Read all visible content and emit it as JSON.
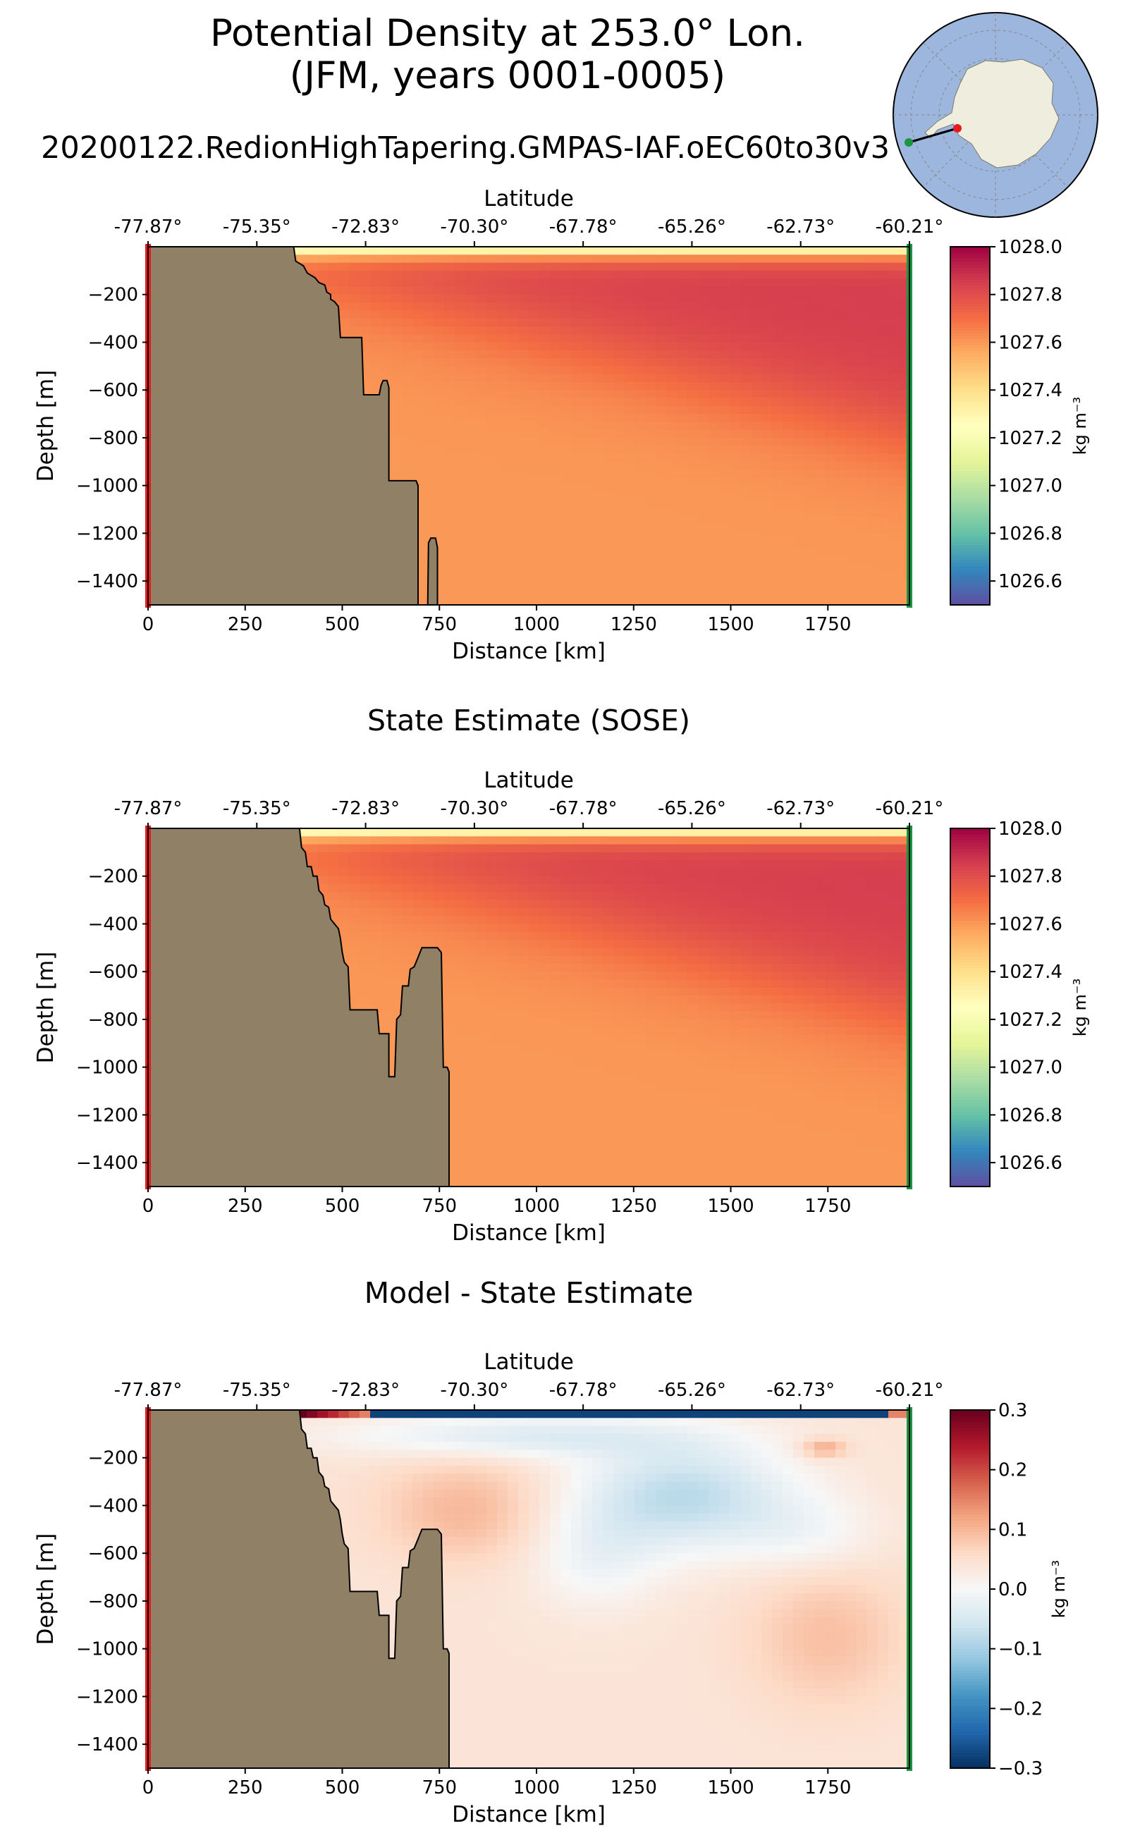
{
  "figure": {
    "title_line1": "Potential Density at 253.0° Lon.",
    "title_line2": "(JFM, years 0001-0005)",
    "run_name": "20200122.RedionHighTapering.GMPAS-IAF.oEC60to30v3",
    "inset_map": {
      "name": "Antarctic inset map",
      "transect_start_color": "#e41a1c",
      "transect_end_color": "#1a9641",
      "ocean_color": "#9db6de",
      "land_color": "#efeede"
    }
  },
  "chart_data": [
    {
      "type": "heatmap",
      "panel": "model",
      "title": "",
      "xlabel": "Distance [km]",
      "ylabel": "Depth [m]",
      "top_xlabel": "Latitude",
      "xlim": [
        0,
        1960
      ],
      "ylim": [
        -1500,
        0
      ],
      "xticks": [
        0,
        250,
        500,
        750,
        1000,
        1250,
        1500,
        1750
      ],
      "xtick_labels": [
        "0",
        "250",
        "500",
        "750",
        "1000",
        "1250",
        "1500",
        "1750"
      ],
      "yticks": [
        -200,
        -400,
        -600,
        -800,
        -1000,
        -1200,
        -1400
      ],
      "ytick_labels": [
        "−200",
        "−400",
        "−600",
        "−800",
        "−1000",
        "−1200",
        "−1400"
      ],
      "top_ticks": [
        0,
        280,
        560,
        840,
        1120,
        1400,
        1680,
        1960
      ],
      "top_tick_labels": [
        "-77.87°",
        "-75.35°",
        "-72.83°",
        "-70.30°",
        "-67.78°",
        "-65.26°",
        "-62.73°",
        "-60.21°"
      ],
      "colorbar": {
        "colormap": "Spectral_r",
        "vmin": 1026.5,
        "vmax": 1028.0,
        "ticks": [
          1028.0,
          1027.8,
          1027.6,
          1027.4,
          1027.2,
          1027.0,
          1026.8,
          1026.6
        ],
        "tick_labels": [
          "1028.0",
          "1027.8",
          "1027.6",
          "1027.4",
          "1027.2",
          "1027.0",
          "1026.8",
          "1026.6"
        ],
        "label": "kg m⁻³"
      },
      "bathymetry_km_depth": [
        [
          0,
          0
        ],
        [
          375,
          0
        ],
        [
          380,
          -60
        ],
        [
          400,
          -80
        ],
        [
          410,
          -110
        ],
        [
          430,
          -130
        ],
        [
          440,
          -150
        ],
        [
          455,
          -160
        ],
        [
          460,
          -190
        ],
        [
          470,
          -200
        ],
        [
          470,
          -220
        ],
        [
          480,
          -230
        ],
        [
          490,
          -250
        ],
        [
          495,
          -380
        ],
        [
          550,
          -380
        ],
        [
          555,
          -620
        ],
        [
          595,
          -620
        ],
        [
          600,
          -580
        ],
        [
          605,
          -560
        ],
        [
          615,
          -560
        ],
        [
          620,
          -590
        ],
        [
          620,
          -980
        ],
        [
          690,
          -980
        ],
        [
          695,
          -1000
        ],
        [
          695,
          -1500
        ],
        [
          720,
          -1500
        ],
        [
          722,
          -1240
        ],
        [
          728,
          -1220
        ],
        [
          740,
          -1220
        ],
        [
          745,
          -1260
        ],
        [
          745,
          -1500
        ],
        [
          0,
          -1500
        ]
      ]
    },
    {
      "type": "heatmap",
      "panel": "sose",
      "title": "State Estimate (SOSE)",
      "xlabel": "Distance [km]",
      "ylabel": "Depth [m]",
      "top_xlabel": "Latitude",
      "xlim": [
        0,
        1960
      ],
      "ylim": [
        -1500,
        0
      ],
      "xticks": [
        0,
        250,
        500,
        750,
        1000,
        1250,
        1500,
        1750
      ],
      "xtick_labels": [
        "0",
        "250",
        "500",
        "750",
        "1000",
        "1250",
        "1500",
        "1750"
      ],
      "yticks": [
        -200,
        -400,
        -600,
        -800,
        -1000,
        -1200,
        -1400
      ],
      "ytick_labels": [
        "−200",
        "−400",
        "−600",
        "−800",
        "−1000",
        "−1200",
        "−1400"
      ],
      "top_ticks": [
        0,
        280,
        560,
        840,
        1120,
        1400,
        1680,
        1960
      ],
      "top_tick_labels": [
        "-77.87°",
        "-75.35°",
        "-72.83°",
        "-70.30°",
        "-67.78°",
        "-65.26°",
        "-62.73°",
        "-60.21°"
      ],
      "colorbar": {
        "colormap": "Spectral_r",
        "vmin": 1026.5,
        "vmax": 1028.0,
        "ticks": [
          1028.0,
          1027.8,
          1027.6,
          1027.4,
          1027.2,
          1027.0,
          1026.8,
          1026.6
        ],
        "tick_labels": [
          "1028.0",
          "1027.8",
          "1027.6",
          "1027.4",
          "1027.2",
          "1027.0",
          "1026.8",
          "1026.6"
        ],
        "label": "kg m⁻³"
      },
      "bathymetry_km_depth": [
        [
          0,
          0
        ],
        [
          390,
          0
        ],
        [
          395,
          -80
        ],
        [
          405,
          -100
        ],
        [
          410,
          -160
        ],
        [
          420,
          -160
        ],
        [
          425,
          -200
        ],
        [
          435,
          -200
        ],
        [
          440,
          -260
        ],
        [
          450,
          -280
        ],
        [
          455,
          -320
        ],
        [
          465,
          -330
        ],
        [
          470,
          -380
        ],
        [
          480,
          -400
        ],
        [
          490,
          -420
        ],
        [
          495,
          -460
        ],
        [
          500,
          -520
        ],
        [
          505,
          -560
        ],
        [
          515,
          -580
        ],
        [
          520,
          -760
        ],
        [
          590,
          -760
        ],
        [
          595,
          -860
        ],
        [
          620,
          -860
        ],
        [
          620,
          -1040
        ],
        [
          635,
          -1040
        ],
        [
          640,
          -800
        ],
        [
          650,
          -780
        ],
        [
          655,
          -660
        ],
        [
          670,
          -660
        ],
        [
          675,
          -590
        ],
        [
          685,
          -580
        ],
        [
          690,
          -560
        ],
        [
          705,
          -500
        ],
        [
          745,
          -500
        ],
        [
          755,
          -520
        ],
        [
          760,
          -1000
        ],
        [
          770,
          -1000
        ],
        [
          775,
          -1020
        ],
        [
          775,
          -1500
        ],
        [
          0,
          -1500
        ]
      ]
    },
    {
      "type": "heatmap",
      "panel": "difference",
      "title": "Model - State Estimate",
      "xlabel": "Distance [km]",
      "ylabel": "Depth [m]",
      "top_xlabel": "Latitude",
      "xlim": [
        0,
        1960
      ],
      "ylim": [
        -1500,
        0
      ],
      "xticks": [
        0,
        250,
        500,
        750,
        1000,
        1250,
        1500,
        1750
      ],
      "xtick_labels": [
        "0",
        "250",
        "500",
        "750",
        "1000",
        "1250",
        "1500",
        "1750"
      ],
      "yticks": [
        -200,
        -400,
        -600,
        -800,
        -1000,
        -1200,
        -1400
      ],
      "ytick_labels": [
        "−200",
        "−400",
        "−600",
        "−800",
        "−1000",
        "−1200",
        "−1400"
      ],
      "top_ticks": [
        0,
        280,
        560,
        840,
        1120,
        1400,
        1680,
        1960
      ],
      "top_tick_labels": [
        "-77.87°",
        "-75.35°",
        "-72.83°",
        "-70.30°",
        "-67.78°",
        "-65.26°",
        "-62.73°",
        "-60.21°"
      ],
      "colorbar": {
        "colormap": "RdBu_r",
        "vmin": -0.3,
        "vmax": 0.3,
        "ticks": [
          0.3,
          0.2,
          0.1,
          0.0,
          -0.1,
          -0.2,
          -0.3
        ],
        "tick_labels": [
          "0.3",
          "0.2",
          "0.1",
          "0.0",
          "−0.1",
          "−0.2",
          "−0.3"
        ],
        "label": "kg m⁻³"
      },
      "bathymetry_km_depth": [
        [
          0,
          0
        ],
        [
          390,
          0
        ],
        [
          395,
          -80
        ],
        [
          405,
          -100
        ],
        [
          410,
          -160
        ],
        [
          420,
          -160
        ],
        [
          425,
          -200
        ],
        [
          435,
          -200
        ],
        [
          440,
          -260
        ],
        [
          450,
          -280
        ],
        [
          455,
          -320
        ],
        [
          465,
          -330
        ],
        [
          470,
          -380
        ],
        [
          480,
          -400
        ],
        [
          490,
          -420
        ],
        [
          495,
          -460
        ],
        [
          500,
          -520
        ],
        [
          505,
          -560
        ],
        [
          515,
          -580
        ],
        [
          520,
          -760
        ],
        [
          590,
          -760
        ],
        [
          595,
          -860
        ],
        [
          620,
          -860
        ],
        [
          620,
          -1040
        ],
        [
          635,
          -1040
        ],
        [
          640,
          -800
        ],
        [
          650,
          -780
        ],
        [
          655,
          -660
        ],
        [
          670,
          -660
        ],
        [
          675,
          -590
        ],
        [
          685,
          -580
        ],
        [
          690,
          -560
        ],
        [
          705,
          -500
        ],
        [
          745,
          -500
        ],
        [
          755,
          -520
        ],
        [
          760,
          -1000
        ],
        [
          770,
          -1000
        ],
        [
          775,
          -1020
        ],
        [
          775,
          -1500
        ],
        [
          0,
          -1500
        ]
      ]
    }
  ]
}
